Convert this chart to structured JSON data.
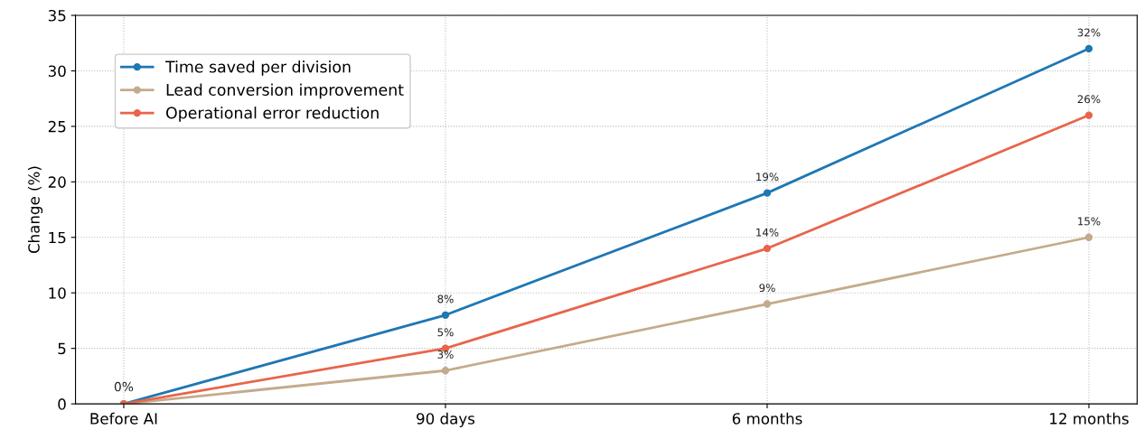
{
  "chart_data": {
    "type": "line",
    "ylabel": "Change (%)",
    "categories": [
      "Before AI",
      "90 days",
      "6 months",
      "12 months"
    ],
    "series": [
      {
        "name": "Time saved per division",
        "color": "#1f77b4",
        "values": [
          0,
          8,
          19,
          32
        ],
        "value_labels": [
          "0%",
          "8%",
          "19%",
          "32%"
        ]
      },
      {
        "name": "Lead conversion improvement",
        "color": "#c4ab8c",
        "values": [
          0,
          3,
          9,
          15
        ],
        "value_labels": [
          null,
          "3%",
          "9%",
          "15%"
        ]
      },
      {
        "name": "Operational error reduction",
        "color": "#e8654a",
        "values": [
          0,
          5,
          14,
          26
        ],
        "value_labels": [
          null,
          "5%",
          "14%",
          "26%"
        ]
      }
    ],
    "ylim": [
      0,
      35
    ],
    "yticks": [
      0,
      5,
      10,
      15,
      20,
      25,
      30,
      35
    ],
    "grid": true,
    "legend": "top left",
    "marker": "circle",
    "line_style": "solid"
  }
}
